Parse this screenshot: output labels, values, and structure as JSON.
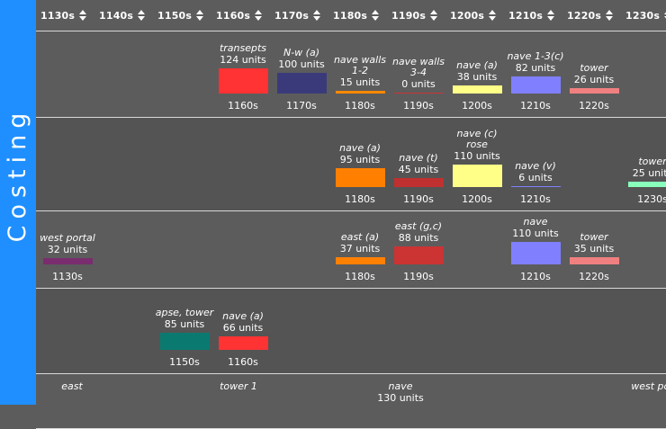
{
  "sidebar": {
    "title": "Costing"
  },
  "columns": [
    "1130s",
    "1140s",
    "1150s",
    "1160s",
    "1170s",
    "1180s",
    "1190s",
    "1200s",
    "1210s",
    "1220s",
    "1230s"
  ],
  "rows": [
    {
      "items": [
        {
          "name": "transepts",
          "units": "124 units",
          "period": "1160s",
          "color": "#ff3333",
          "amount": 124
        },
        {
          "name": "N-w (a)",
          "units": "100 units",
          "period": "1170s",
          "color": "#3a3a7a",
          "amount": 100
        },
        {
          "name": "nave walls 1-2",
          "units": "15 units",
          "period": "1180s",
          "color": "#ff8800",
          "amount": 15
        },
        {
          "name": "nave walls 3-4",
          "units": "0 units",
          "period": "1190s",
          "color": "#cc3333",
          "amount": 0
        },
        {
          "name": "nave (a)",
          "units": "38 units",
          "period": "1200s",
          "color": "#ffff88",
          "amount": 38
        },
        {
          "name": "nave 1-3(c)",
          "units": "82 units",
          "period": "1210s",
          "color": "#8080ff",
          "amount": 82
        },
        {
          "name": "tower",
          "units": "26 units",
          "period": "1220s",
          "color": "#f08080",
          "amount": 26
        }
      ]
    },
    {
      "items": [
        {
          "name": "nave (a)",
          "units": "95 units",
          "period": "1180s",
          "color": "#ff8000",
          "amount": 95
        },
        {
          "name": "nave (t)",
          "units": "45 units",
          "period": "1190s",
          "color": "#c03030",
          "amount": 45
        },
        {
          "name": "nave (c) rose",
          "units": "110 units",
          "period": "1200s",
          "color": "#ffff88",
          "amount": 110
        },
        {
          "name": "nave (v)",
          "units": "6 units",
          "period": "1210s",
          "color": "#8080ff",
          "amount": 6
        },
        {
          "name": "tower",
          "units": "25 units",
          "period": "1230s",
          "color": "#88ffbb",
          "amount": 25
        }
      ]
    },
    {
      "items": [
        {
          "name": "west portal",
          "units": "32 units",
          "period": "1130s",
          "color": "#7a2d6e",
          "amount": 32
        },
        {
          "name": "east (a)",
          "units": "37 units",
          "period": "1180s",
          "color": "#ff8000",
          "amount": 37
        },
        {
          "name": "east (g,c)",
          "units": "88 units",
          "period": "1190s",
          "color": "#cc3333",
          "amount": 88
        },
        {
          "name": "nave",
          "units": "110 units",
          "period": "1210s",
          "color": "#8080ff",
          "amount": 110
        },
        {
          "name": "tower",
          "units": "35 units",
          "period": "1220s",
          "color": "#f08080",
          "amount": 35
        }
      ]
    },
    {
      "items": [
        {
          "name": "apse, tower",
          "units": "85 units",
          "period": "1150s",
          "color": "#0a7a70",
          "amount": 85
        },
        {
          "name": "nave (a)",
          "units": "66 units",
          "period": "1160s",
          "color": "#ff3333",
          "amount": 66
        }
      ]
    },
    {
      "items": [
        {
          "name": "east",
          "units": "",
          "period": "",
          "color": "#cccccc",
          "amount": 0,
          "partial": true
        },
        {
          "name": "tower 1",
          "units": "",
          "period": "",
          "color": "#cccccc",
          "amount": 0,
          "partial": true
        },
        {
          "name": "nave",
          "units": "130 units",
          "period": "",
          "color": "#cccccc",
          "amount": 130,
          "partial": true
        },
        {
          "name": "west por",
          "units": "",
          "period": "",
          "color": "#cccccc",
          "amount": 0,
          "partial": true
        }
      ]
    }
  ]
}
